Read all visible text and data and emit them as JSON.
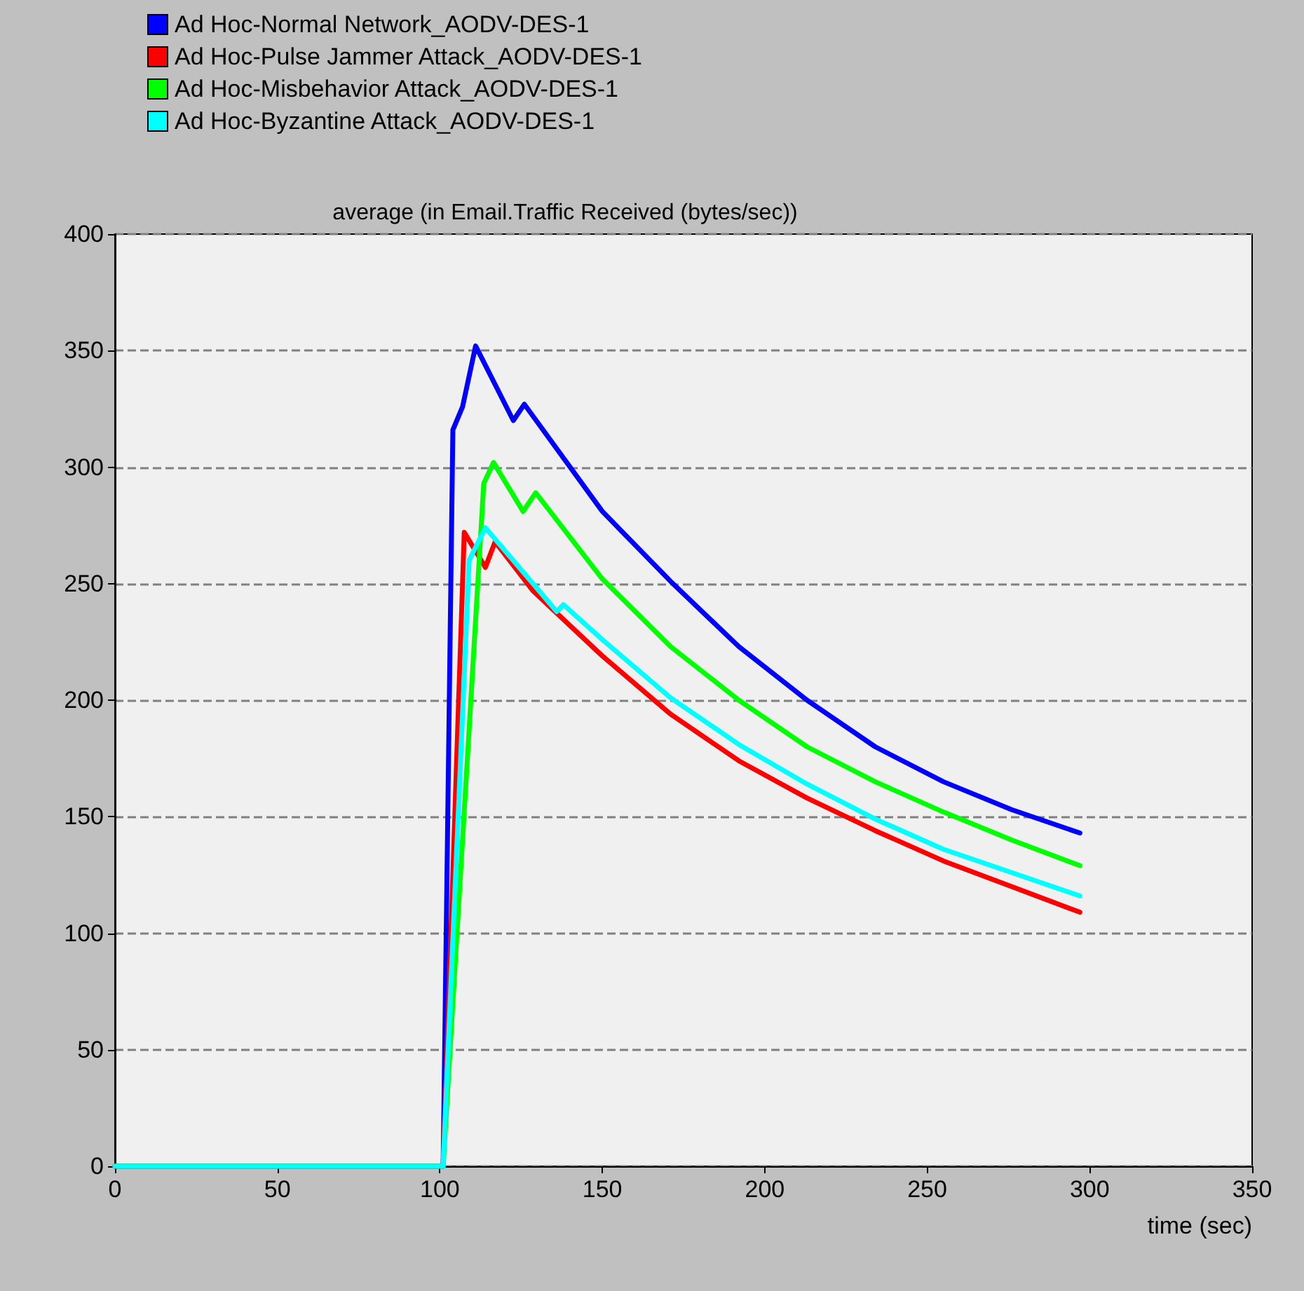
{
  "chart_data": {
    "type": "line",
    "title": "average (in Email.Traffic Received (bytes/sec))",
    "xlabel": "time (sec)",
    "xlim": [
      0,
      350
    ],
    "xticks": [
      0,
      50,
      100,
      150,
      200,
      250,
      300,
      350
    ],
    "ylim": [
      0,
      400
    ],
    "yticks": [
      0,
      50,
      100,
      150,
      200,
      250,
      300,
      350,
      400
    ],
    "grid": "y",
    "legend": "top left",
    "marker": "none",
    "line_style": "solid",
    "series": [
      {
        "name": "Ad Hoc-Normal Network_AODV-DES-1",
        "color": "#0000ff",
        "x": [
          0,
          101,
          104,
          107,
          111,
          122.6,
          126,
          150,
          171,
          192,
          213,
          234,
          255,
          276,
          297
        ],
        "values": [
          0,
          0,
          316,
          326,
          352,
          320,
          327,
          281,
          251,
          223,
          200,
          180,
          165,
          153,
          143
        ]
      },
      {
        "name": "Ad Hoc-Pulse Jammer Attack_AODV-DES-1",
        "color": "#ff0000",
        "x": [
          0,
          101,
          107.5,
          114,
          117,
          128.6,
          150,
          171,
          192,
          213,
          234,
          255,
          276,
          297
        ],
        "values": [
          0,
          0,
          272,
          257,
          268,
          247,
          219,
          194,
          174,
          158,
          144,
          131,
          120,
          109
        ]
      },
      {
        "name": "Ad Hoc-Misbehavior Attack_AODV-DES-1",
        "color": "#00ff00",
        "x": [
          0,
          101,
          113.5,
          116.5,
          125.6,
          129.5,
          150,
          171,
          192,
          213,
          234,
          255,
          276,
          297
        ],
        "values": [
          0,
          0,
          293,
          302,
          281,
          289,
          252,
          223,
          200,
          180,
          165,
          152,
          140,
          129
        ]
      },
      {
        "name": "Ad Hoc-Byzantine Attack_AODV-DES-1",
        "color": "#00ffff",
        "x": [
          0,
          101,
          109,
          114,
          136,
          138,
          150,
          171,
          192,
          213,
          234,
          255,
          276,
          297
        ],
        "values": [
          0,
          0,
          260,
          274,
          238,
          241,
          226,
          201,
          181,
          164,
          149,
          136,
          126,
          116
        ]
      }
    ]
  }
}
